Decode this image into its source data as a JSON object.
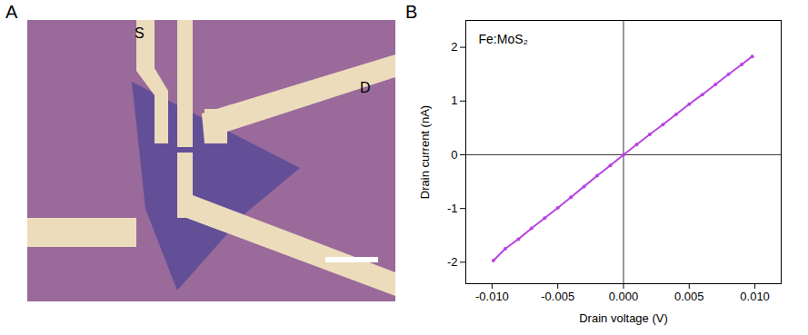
{
  "image": {
    "panel_label": "A",
    "labels": [
      "S",
      "D"
    ]
  },
  "chart_data": {
    "type": "line",
    "panel_label": "B",
    "x_label": "Drain voltage (V)",
    "y_label": "Drain current (nA)",
    "annotations": [
      {
        "text": "Fe:MoS₂"
      }
    ],
    "x": [
      -0.0099,
      -0.009,
      -0.008,
      -0.007,
      -0.006,
      -0.005,
      -0.004,
      -0.003,
      -0.002,
      -0.001,
      0,
      0.001,
      0.002,
      0.003,
      0.004,
      0.005,
      0.006,
      0.007,
      0.008,
      0.009,
      0.0098
    ],
    "series": [
      {
        "name": "Fe:MoS₂",
        "color": "#b845e0",
        "marker": "circle",
        "line_style": "solid",
        "values": [
          -1.97,
          -1.75,
          -1.57,
          -1.37,
          -1.18,
          -0.99,
          -0.79,
          -0.59,
          -0.39,
          -0.2,
          0,
          0.19,
          0.38,
          0.56,
          0.75,
          0.94,
          1.12,
          1.31,
          1.5,
          1.68,
          1.83
        ]
      }
    ],
    "xlim": [
      -0.012,
      0.012
    ],
    "xticks": [
      {
        "value": -0.01,
        "label": "-0.010"
      },
      {
        "value": -0.005,
        "label": "-0.005"
      },
      {
        "value": 0,
        "label": "0.000"
      },
      {
        "value": 0.005,
        "label": "0.005"
      },
      {
        "value": 0.01,
        "label": "0.010"
      }
    ],
    "ylim": [
      -2.4,
      2.5
    ],
    "yticks": [
      -2,
      -1,
      0,
      1,
      2
    ],
    "grid": false
  }
}
